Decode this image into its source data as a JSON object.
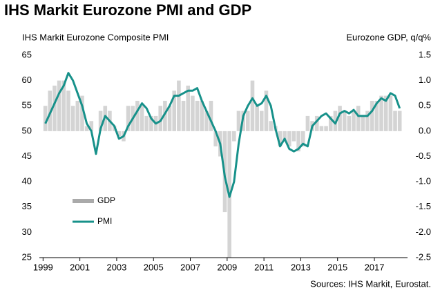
{
  "chart_data": {
    "type": "bar-line",
    "title": "IHS Markit Eurozone PMI and GDP",
    "ylabel": "IHS Markit Eurozone Composite PMI",
    "y2label": "Eurozone GDP, q/q%",
    "source": "Sources: IHS Markit, Eurostat.",
    "legend": "center left",
    "xlim": [
      1998.8,
      2018.8
    ],
    "xticks": [
      1999,
      2001,
      2003,
      2005,
      2007,
      2009,
      2011,
      2013,
      2015,
      2017
    ],
    "ylim": [
      25,
      65
    ],
    "yticks": [
      25,
      30,
      35,
      40,
      45,
      50,
      55,
      60,
      65
    ],
    "y2lim": [
      -2.5,
      1.5
    ],
    "y2ticks": [
      -2.5,
      {
        "value": -2.0,
        "label": "-2.0"
      },
      -1.5,
      {
        "value": -1.0,
        "label": "-1.0"
      },
      -0.5,
      {
        "value": 0.0,
        "label": "0.0"
      },
      0.5,
      {
        "value": 1.0,
        "label": "1.0"
      },
      1.5
    ],
    "x": [
      1999.125,
      1999.375,
      1999.625,
      1999.875,
      2000.125,
      2000.375,
      2000.625,
      2000.875,
      2001.125,
      2001.375,
      2001.625,
      2001.875,
      2002.125,
      2002.375,
      2002.625,
      2002.875,
      2003.125,
      2003.375,
      2003.625,
      2003.875,
      2004.125,
      2004.375,
      2004.625,
      2004.875,
      2005.125,
      2005.375,
      2005.625,
      2005.875,
      2006.125,
      2006.375,
      2006.625,
      2006.875,
      2007.125,
      2007.375,
      2007.625,
      2007.875,
      2008.125,
      2008.375,
      2008.625,
      2008.875,
      2009.125,
      2009.375,
      2009.625,
      2009.875,
      2010.125,
      2010.375,
      2010.625,
      2010.875,
      2011.125,
      2011.375,
      2011.625,
      2011.875,
      2012.125,
      2012.375,
      2012.625,
      2012.875,
      2013.125,
      2013.375,
      2013.625,
      2013.875,
      2014.125,
      2014.375,
      2014.625,
      2014.875,
      2015.125,
      2015.375,
      2015.625,
      2015.875,
      2016.125,
      2016.375,
      2016.625,
      2016.875,
      2017.125,
      2017.375,
      2017.625,
      2017.875,
      2018.125,
      2018.375
    ],
    "series": [
      {
        "name": "GDP",
        "type": "bar",
        "axis": "y2",
        "color": "#d4d4d4",
        "values": [
          0.5,
          0.8,
          0.9,
          1.0,
          1.0,
          0.8,
          0.5,
          0.6,
          0.7,
          0.1,
          0.2,
          0.0,
          0.4,
          0.5,
          0.4,
          0.1,
          -0.1,
          -0.2,
          0.5,
          0.5,
          0.6,
          0.5,
          0.3,
          0.3,
          0.3,
          0.5,
          0.6,
          0.5,
          0.8,
          1.0,
          0.6,
          0.9,
          0.7,
          0.6,
          0.6,
          0.4,
          0.6,
          -0.3,
          -0.5,
          -1.6,
          -2.5,
          -0.2,
          0.4,
          0.4,
          0.4,
          1.0,
          0.5,
          0.4,
          0.8,
          0.2,
          0.1,
          -0.3,
          -0.2,
          -0.3,
          -0.2,
          -0.4,
          -0.3,
          0.3,
          0.2,
          0.3,
          0.1,
          0.1,
          0.3,
          0.4,
          0.5,
          0.4,
          0.3,
          0.4,
          0.5,
          0.3,
          0.4,
          0.6,
          0.6,
          0.7,
          0.7,
          0.7,
          0.4,
          0.4
        ]
      },
      {
        "name": "PMI",
        "type": "line",
        "color": "#17918a",
        "values": [
          51.5,
          53.5,
          55.5,
          57.5,
          59,
          61.5,
          60,
          57.5,
          55,
          51.5,
          50,
          45.5,
          50.5,
          53,
          52,
          51,
          48.5,
          49,
          51,
          52.5,
          54,
          55.5,
          54.5,
          52.5,
          51.5,
          52,
          53.5,
          55,
          57,
          57,
          57.5,
          58,
          58,
          58.5,
          56,
          54,
          52,
          50,
          47.5,
          41,
          37,
          40,
          47.5,
          53,
          55,
          56.5,
          55,
          55.5,
          57,
          55,
          50.5,
          47,
          48.5,
          46.5,
          46,
          46.5,
          47.5,
          47,
          51,
          52,
          53,
          53.5,
          52.5,
          51.5,
          53.5,
          54,
          53.5,
          54.2,
          53,
          53,
          53,
          54,
          55.5,
          56.5,
          56,
          57.5,
          57,
          54.5
        ]
      }
    ]
  }
}
